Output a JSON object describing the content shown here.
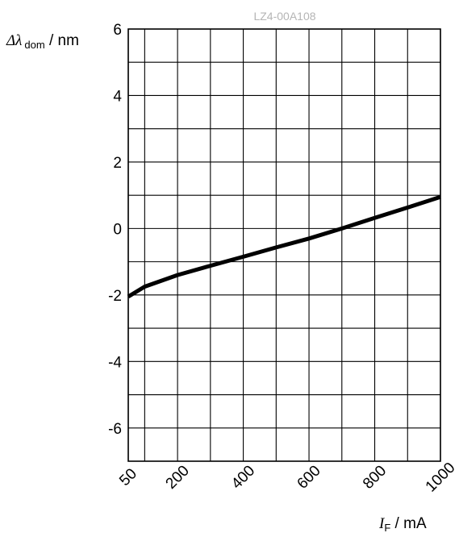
{
  "watermark": "LZ4-00A108",
  "chart_data": {
    "type": "line",
    "x_tick_labels": [
      "50",
      "200",
      "400",
      "600",
      "800",
      "1000"
    ],
    "x_ticks": [
      50,
      200,
      400,
      600,
      800,
      1000
    ],
    "y_ticks": [
      6,
      4,
      2,
      0,
      -2,
      -4,
      -6
    ],
    "y_tick_labels": [
      "6",
      "4",
      "2",
      "0",
      "-2",
      "-4",
      "-6"
    ],
    "xlim": [
      50,
      1000
    ],
    "ylim": [
      -7,
      6
    ],
    "grid": true,
    "x_minor_gridlines": [
      100,
      300,
      500,
      700,
      900
    ],
    "y_minor_gridlines": [
      5,
      3,
      1,
      -1,
      -3,
      -5
    ],
    "xlabel": {
      "symbol": "I",
      "subscript": "F",
      "unit": " / mA"
    },
    "ylabel": {
      "symbol": "Δλ",
      "subscript": "dom",
      "unit": " / nm"
    },
    "series": [
      {
        "color": "#000000",
        "x": [
          50,
          100,
          200,
          300,
          400,
          500,
          600,
          700,
          800,
          900,
          1000
        ],
        "y": [
          -2.05,
          -1.75,
          -1.4,
          -1.12,
          -0.85,
          -0.57,
          -0.3,
          0.0,
          0.32,
          0.63,
          0.95
        ]
      }
    ]
  }
}
